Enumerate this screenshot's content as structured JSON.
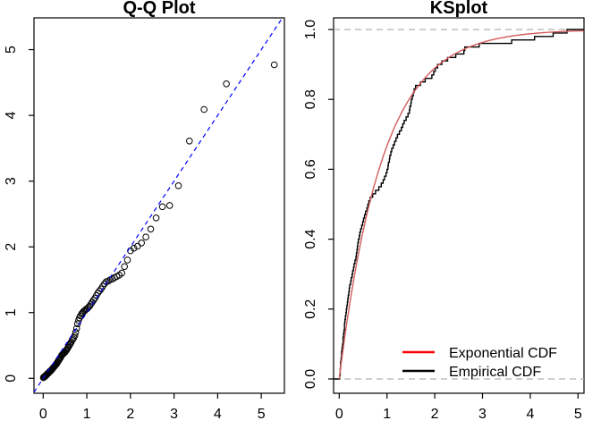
{
  "figure": {
    "background": "#ffffff",
    "frame_color": "#000000"
  },
  "chart_data": [
    {
      "type": "scatter",
      "title": "Q-Q Plot",
      "xlabel": "",
      "ylabel": "",
      "xlim": [
        -0.21,
        5.53
      ],
      "ylim": [
        -0.23,
        5.48
      ],
      "grid": false,
      "xticks": [
        0,
        1,
        2,
        3,
        4,
        5
      ],
      "yticks": [
        0,
        1,
        2,
        3,
        4,
        5
      ],
      "xtick_labels": [
        "0",
        "1",
        "2",
        "3",
        "4",
        "5"
      ],
      "ytick_labels": [
        "0",
        "1",
        "2",
        "3",
        "4",
        "5"
      ],
      "point_style": {
        "shape": "open-circle",
        "color": "#000000"
      },
      "reference_line": {
        "intercept": 0,
        "slope": 1,
        "color": "#0000ff",
        "dashed": true
      },
      "theoretical": [
        0.005,
        0.015,
        0.025,
        0.036,
        0.046,
        0.057,
        0.067,
        0.078,
        0.089,
        0.1,
        0.111,
        0.122,
        0.134,
        0.145,
        0.157,
        0.168,
        0.18,
        0.192,
        0.205,
        0.217,
        0.229,
        0.242,
        0.255,
        0.268,
        0.281,
        0.294,
        0.308,
        0.322,
        0.335,
        0.35,
        0.364,
        0.378,
        0.393,
        0.408,
        0.423,
        0.438,
        0.454,
        0.47,
        0.486,
        0.503,
        0.519,
        0.536,
        0.553,
        0.571,
        0.589,
        0.607,
        0.625,
        0.644,
        0.664,
        0.683,
        0.703,
        0.724,
        0.744,
        0.766,
        0.787,
        0.81,
        0.832,
        0.856,
        0.879,
        0.904,
        0.929,
        0.955,
        0.981,
        1.008,
        1.036,
        1.064,
        1.094,
        1.124,
        1.155,
        1.187,
        1.221,
        1.255,
        1.291,
        1.328,
        1.366,
        1.407,
        1.448,
        1.492,
        1.537,
        1.585,
        1.635,
        1.687,
        1.743,
        1.802,
        1.864,
        1.931,
        2.002,
        2.079,
        2.163,
        2.254,
        2.354,
        2.465,
        2.59,
        2.733,
        2.9,
        3.101,
        3.352,
        3.689,
        4.2,
        5.298
      ],
      "sample": [
        0.01,
        0.02,
        0.02,
        0.03,
        0.03,
        0.04,
        0.05,
        0.05,
        0.06,
        0.07,
        0.08,
        0.08,
        0.09,
        0.1,
        0.11,
        0.11,
        0.12,
        0.13,
        0.14,
        0.15,
        0.16,
        0.17,
        0.18,
        0.19,
        0.2,
        0.21,
        0.22,
        0.24,
        0.25,
        0.27,
        0.28,
        0.3,
        0.31,
        0.33,
        0.35,
        0.36,
        0.37,
        0.38,
        0.39,
        0.4,
        0.42,
        0.43,
        0.45,
        0.47,
        0.49,
        0.51,
        0.53,
        0.55,
        0.58,
        0.6,
        0.62,
        0.65,
        0.7,
        0.76,
        0.83,
        0.88,
        0.92,
        0.95,
        0.98,
        1.0,
        1.02,
        1.03,
        1.05,
        1.06,
        1.08,
        1.1,
        1.13,
        1.16,
        1.19,
        1.22,
        1.26,
        1.3,
        1.33,
        1.36,
        1.4,
        1.44,
        1.47,
        1.48,
        1.5,
        1.51,
        1.53,
        1.55,
        1.57,
        1.6,
        1.7,
        1.8,
        1.94,
        1.98,
        2.01,
        2.06,
        2.15,
        2.27,
        2.44,
        2.61,
        2.63,
        2.93,
        3.61,
        4.09,
        4.48,
        4.77
      ]
    },
    {
      "type": "line",
      "title": "KSplot",
      "xlabel": "",
      "ylabel": "",
      "xlim": [
        -0.12,
        5.13
      ],
      "ylim": [
        -0.04,
        1.03
      ],
      "grid": false,
      "xticks": [
        0,
        1,
        2,
        3,
        4,
        5
      ],
      "yticks": [
        0.0,
        0.2,
        0.4,
        0.6,
        0.8,
        1.0
      ],
      "xtick_labels": [
        "0",
        "1",
        "2",
        "3",
        "4",
        "5"
      ],
      "ytick_labels": [
        "0.0",
        "0.2",
        "0.4",
        "0.6",
        "0.8",
        "1.0"
      ],
      "exponential_cdf": {
        "formula": "F(x) = 1 - exp(-rate*x)",
        "rate": 1.1,
        "color": "#d35d5d"
      },
      "empirical_cdf_color": "#000000",
      "hlines": {
        "values": [
          0,
          1
        ],
        "color": "#b0b0b0",
        "dashed": true
      },
      "sample": [
        0.01,
        0.02,
        0.02,
        0.03,
        0.03,
        0.04,
        0.05,
        0.05,
        0.06,
        0.07,
        0.08,
        0.08,
        0.09,
        0.1,
        0.11,
        0.11,
        0.12,
        0.13,
        0.14,
        0.15,
        0.16,
        0.17,
        0.18,
        0.19,
        0.2,
        0.21,
        0.22,
        0.24,
        0.25,
        0.27,
        0.28,
        0.3,
        0.31,
        0.33,
        0.35,
        0.36,
        0.37,
        0.38,
        0.39,
        0.4,
        0.42,
        0.43,
        0.45,
        0.47,
        0.49,
        0.51,
        0.53,
        0.55,
        0.58,
        0.6,
        0.62,
        0.65,
        0.7,
        0.76,
        0.83,
        0.88,
        0.92,
        0.95,
        0.98,
        1.0,
        1.02,
        1.03,
        1.05,
        1.06,
        1.08,
        1.1,
        1.13,
        1.16,
        1.19,
        1.22,
        1.26,
        1.3,
        1.33,
        1.36,
        1.4,
        1.44,
        1.47,
        1.48,
        1.5,
        1.51,
        1.53,
        1.55,
        1.57,
        1.6,
        1.7,
        1.8,
        1.94,
        1.98,
        2.01,
        2.06,
        2.15,
        2.27,
        2.44,
        2.61,
        2.63,
        2.93,
        3.61,
        4.09,
        4.48,
        4.77
      ],
      "legend": [
        {
          "label": "Exponential CDF",
          "color": "#ff0000"
        },
        {
          "label": "Empirical CDF",
          "color": "#000000"
        }
      ],
      "legend_position": "bottomright"
    }
  ]
}
